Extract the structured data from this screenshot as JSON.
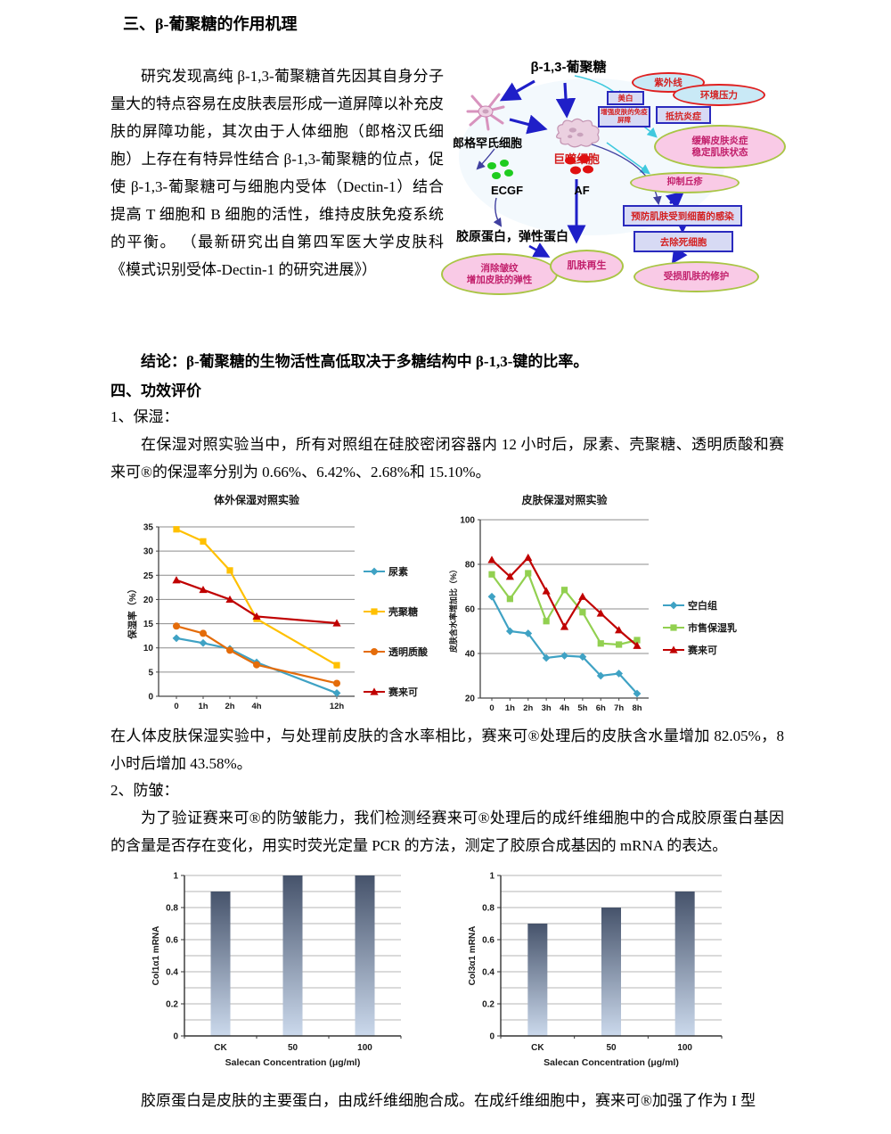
{
  "doc": {
    "heading_mechanism": "三、β-葡聚糖的作用机理",
    "mechanism_paragraph": "研究发现高纯 β-1,3-葡聚糖首先因其自身分子量大的特点容易在皮肤表层形成一道屏障以补充皮肤的屏障功能，其次由于人体细胞（郎格汉氏细胞）上存在有特异性结合 β-1,3-葡聚糖的位点，促使 β-1,3-葡聚糖可与细胞内受体（Dectin-1）结合提高 T 细胞和 B 细胞的活性，维持皮肤免疫系统的平衡。 （最新研究出自第四军医大学皮肤科《模式识别受体-Dectin-1 的研究进展》）",
    "conclusion": "结论：β-葡聚糖的生物活性高低取决于多糖结构中 β-1,3-键的比率。",
    "heading_efficacy": "四、功效评价",
    "sub_moisturizing": "1、保湿：",
    "moisturizing_paragraph": "在保湿对照实验当中，所有对照组在硅胶密闭容器内 12 小时后，尿素、壳聚糖、透明质酸和赛来可®的保湿率分别为 0.66%、6.42%、2.68%和 15.10%。",
    "moisturizing_result": "在人体皮肤保湿实验中，与处理前皮肤的含水率相比，赛来可®处理后的皮肤含水量增加 82.05%，8 小时后增加 43.58%。",
    "sub_wrinkle": "2、防皱：",
    "wrinkle_paragraph": "为了验证赛来可®的防皱能力，我们检测经赛来可®处理后的成纤维细胞中的合成胶原蛋白基因的含量是否存在变化，用实时荧光定量 PCR 的方法，测定了胶原合成基因的 mRNA 的表达。",
    "collagen_paragraph": "胶原蛋白是皮肤的主要蛋白，由成纤维细胞合成。在成纤维细胞中，赛来可®加强了作为 I 型"
  },
  "diagram": {
    "title": "β-1,3-葡聚糖",
    "langerhans_label": "郎格罕氏细胞",
    "macrophage_label": "巨噬细胞",
    "ecgf_label": "ECGF",
    "af_label": "AF",
    "collagen_label": "胶原蛋白，弹性蛋白",
    "box_whitening": "美白",
    "box_immune_barrier": "增强皮肤的免疫屏障",
    "box_anti_inflammation": "抵抗炎症",
    "box_prevent_infection": "预防肌肤受到细菌的感染",
    "box_remove_dead_cells": "去除死细胞",
    "ellipse_uv": "紫外线",
    "ellipse_env_stress": "环境压力",
    "ellipse_calm_line1": "缓解皮肤炎症",
    "ellipse_calm_line2": "稳定肌肤状态",
    "ellipse_papule": "抑制丘疹",
    "ellipse_wrinkle_line1": "消除皱纹",
    "ellipse_wrinkle_line2": "增加皮肤的弹性",
    "ellipse_regen": "肌肤再生",
    "ellipse_repair": "受损肌肤的修护"
  },
  "chart_data": [
    {
      "type": "line",
      "title": "体外保湿对照实验",
      "ylabel": "保湿率（%）",
      "ylim": [
        0,
        35
      ],
      "yticks": [
        0,
        5,
        10,
        15,
        20,
        25,
        30,
        35
      ],
      "x_labels": [
        "0",
        "1h",
        "2h",
        "4h",
        "12h"
      ],
      "x_units": [
        0,
        1,
        2,
        3,
        6
      ],
      "grid": true,
      "legend_position": "right",
      "series": [
        {
          "name": "尿素",
          "color": "#3FA2C4",
          "marker": "diamond",
          "values": [
            12,
            11,
            9.8,
            7,
            0.66
          ]
        },
        {
          "name": "壳聚糖",
          "color": "#FFC000",
          "marker": "square",
          "values": [
            34.5,
            32,
            26,
            16,
            6.42
          ]
        },
        {
          "name": "透明质酸",
          "color": "#E46C0A",
          "marker": "circle",
          "values": [
            14.5,
            13,
            9.5,
            6.5,
            2.68
          ]
        },
        {
          "name": "赛来可",
          "color": "#C00000",
          "marker": "triangle",
          "values": [
            24,
            22,
            20,
            16.5,
            15.1
          ]
        }
      ]
    },
    {
      "type": "line",
      "title": "皮肤保湿对照实验",
      "ylabel": "皮肤含水率增加比（%）",
      "ylim": [
        20,
        100
      ],
      "yticks": [
        20,
        40,
        60,
        80,
        100
      ],
      "x_labels": [
        "0",
        "1h",
        "2h",
        "3h",
        "4h",
        "5h",
        "6h",
        "7h",
        "8h"
      ],
      "grid": true,
      "legend_position": "right",
      "series": [
        {
          "name": "空白组",
          "color": "#3FA2C4",
          "marker": "diamond",
          "values": [
            65.5,
            50,
            49,
            38,
            39,
            38.5,
            30,
            31,
            22
          ]
        },
        {
          "name": "市售保湿乳",
          "color": "#92D050",
          "marker": "square",
          "values": [
            75.5,
            64.5,
            76,
            54.5,
            68.5,
            58.5,
            44.5,
            44,
            46
          ]
        },
        {
          "name": "赛来可",
          "color": "#C00000",
          "marker": "triangle",
          "values": [
            82,
            74.5,
            83,
            68,
            52,
            65.5,
            58,
            50.5,
            43.5
          ]
        }
      ]
    },
    {
      "type": "bar",
      "title": "",
      "categories": [
        "CK",
        "50",
        "100"
      ],
      "values": [
        0.9,
        1.0,
        1.0
      ],
      "xlabel": "Salecan Concentration (μg/ml)",
      "ylabel": "Col1α1 mRNA",
      "ylim": [
        0,
        1
      ],
      "yticks": [
        0,
        0.2,
        0.4,
        0.6,
        0.8,
        1
      ],
      "minor_grid_step": 0.1,
      "bar_gradient": [
        "#46536B",
        "#CBD9EC"
      ]
    },
    {
      "type": "bar",
      "title": "",
      "categories": [
        "CK",
        "50",
        "100"
      ],
      "values": [
        0.7,
        0.8,
        0.9
      ],
      "xlabel": "Salecan Concentration (μg/ml)",
      "ylabel": "Col3α1 mRNA",
      "ylim": [
        0,
        1
      ],
      "yticks": [
        0,
        0.2,
        0.4,
        0.6,
        0.8,
        1
      ],
      "minor_grid_step": 0.1,
      "bar_gradient": [
        "#46536B",
        "#CBD9EC"
      ]
    }
  ]
}
